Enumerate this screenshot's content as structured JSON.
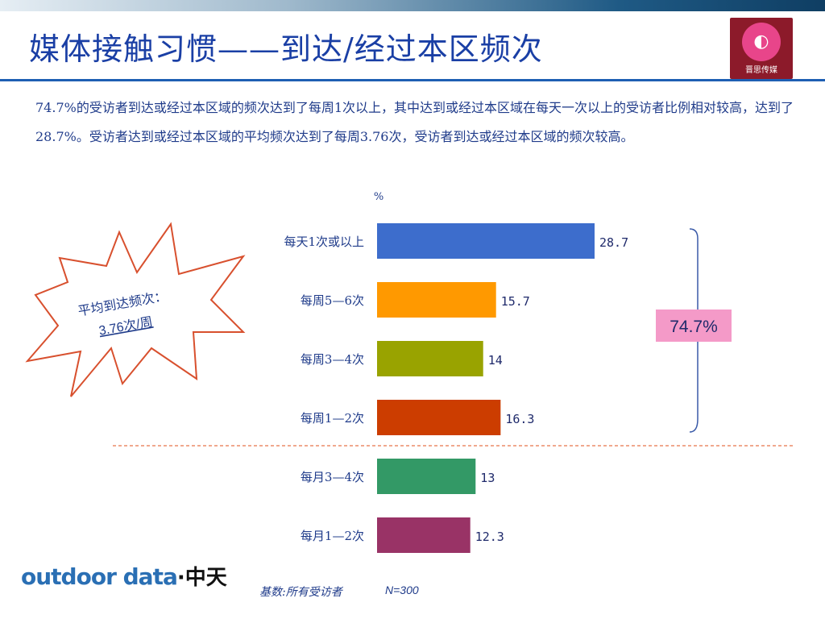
{
  "header": {
    "title": "媒体接触习惯——到达/经过本区频次",
    "logo_text": "晋思传媒"
  },
  "description": "74.7%的受访者到达或经过本区域的频次达到了每周1次以上，其中达到或经过本区域在每天一次以上的受访者比例相对较高，达到了28.7%。受访者达到或经过本区域的平均频次达到了每周3.76次，受访者到达或经过本区域的频次较高。",
  "callout": {
    "line1": "平均到达频次：",
    "line2": "3.76次/周"
  },
  "bracket_label": "74.7%",
  "footer": {
    "logo_part1": "outdoor data",
    "logo_part2": "·中天",
    "base_note": "基数:所有受访者",
    "base_n": "N=300"
  },
  "colors": {
    "title": "#1a3fa5",
    "text": "#1f3b8a",
    "bracket_label_bg": "#f49ac8",
    "divider": "#e8734a"
  },
  "chart_data": {
    "type": "bar",
    "orientation": "horizontal",
    "unit_label": "%",
    "categories": [
      "每天1次或以上",
      "每周5—6次",
      "每周3—4次",
      "每周1—2次",
      "每月3—4次",
      "每月1—2次"
    ],
    "values": [
      28.7,
      15.7,
      14,
      16.3,
      13,
      12.3
    ],
    "value_labels": [
      "28.7",
      "15.7",
      "14",
      "16.3",
      "13",
      "12.3"
    ],
    "bar_colors": [
      "#3d6dcc",
      "#ff9900",
      "#99a300",
      "#cc3d00",
      "#339966",
      "#993366"
    ],
    "xlim": [
      0,
      28.7
    ],
    "grid": false,
    "legend": "none"
  }
}
